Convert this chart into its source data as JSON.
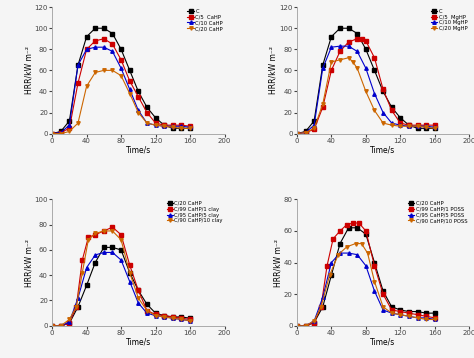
{
  "background": "#f5f5f5",
  "plots": [
    {
      "ylabel": "HRR/kW m⁻²",
      "xlabel": "Time/s",
      "xlim": [
        0,
        200
      ],
      "ylim": [
        0,
        120
      ],
      "yticks": [
        0,
        20,
        40,
        60,
        80,
        100,
        120
      ],
      "xticks": [
        0,
        40,
        80,
        120,
        160,
        200
      ],
      "series": [
        {
          "label": "C",
          "color": "#000000",
          "marker": "s",
          "x": [
            0,
            10,
            20,
            30,
            40,
            50,
            60,
            70,
            80,
            90,
            100,
            110,
            120,
            130,
            140,
            150,
            160
          ],
          "y": [
            0,
            2,
            12,
            65,
            92,
            100,
            100,
            95,
            80,
            60,
            40,
            25,
            15,
            8,
            5,
            5,
            5
          ]
        },
        {
          "label": "C/5  CaHP",
          "color": "#cc0000",
          "marker": "s",
          "x": [
            0,
            10,
            20,
            30,
            40,
            50,
            60,
            70,
            80,
            90,
            100,
            110,
            120,
            130,
            140,
            150,
            160
          ],
          "y": [
            0,
            1,
            5,
            48,
            80,
            88,
            90,
            85,
            70,
            50,
            35,
            20,
            10,
            8,
            8,
            8,
            7
          ]
        },
        {
          "label": "C/10 CaHP",
          "color": "#0000cc",
          "marker": "^",
          "x": [
            0,
            10,
            20,
            30,
            40,
            50,
            60,
            70,
            80,
            90,
            100,
            110,
            120,
            130,
            140,
            150,
            160
          ],
          "y": [
            0,
            1,
            8,
            65,
            80,
            82,
            82,
            78,
            62,
            42,
            22,
            10,
            8,
            7,
            7,
            7,
            6
          ]
        },
        {
          "label": "C/20 CaHP",
          "color": "#cc6600",
          "marker": "v",
          "x": [
            0,
            10,
            20,
            30,
            40,
            50,
            60,
            70,
            80,
            90,
            100,
            110,
            120,
            130,
            140,
            150,
            160
          ],
          "y": [
            0,
            0,
            2,
            10,
            45,
            58,
            60,
            60,
            55,
            38,
            20,
            10,
            8,
            7,
            6,
            5,
            5
          ]
        }
      ]
    },
    {
      "ylabel": "HRR/kW m⁻²",
      "xlabel": "Time/s",
      "xlim": [
        0,
        200
      ],
      "ylim": [
        0,
        120
      ],
      "yticks": [
        0,
        20,
        40,
        60,
        80,
        100,
        120
      ],
      "xticks": [
        0,
        40,
        80,
        120,
        160,
        200
      ],
      "series": [
        {
          "label": "C",
          "color": "#000000",
          "marker": "s",
          "x": [
            0,
            10,
            20,
            30,
            40,
            50,
            60,
            70,
            80,
            90,
            100,
            110,
            120,
            130,
            140,
            150,
            160
          ],
          "y": [
            0,
            2,
            12,
            65,
            92,
            100,
            100,
            95,
            80,
            60,
            40,
            25,
            15,
            8,
            5,
            5,
            5
          ]
        },
        {
          "label": "C/5  MgHP",
          "color": "#cc0000",
          "marker": "s",
          "x": [
            0,
            10,
            20,
            30,
            40,
            50,
            60,
            70,
            75,
            80,
            90,
            100,
            110,
            120,
            130,
            140,
            150,
            160
          ],
          "y": [
            0,
            1,
            4,
            25,
            60,
            78,
            87,
            90,
            90,
            88,
            72,
            42,
            22,
            10,
            8,
            8,
            8,
            8
          ]
        },
        {
          "label": "C/10 MgHP",
          "color": "#0000cc",
          "marker": "^",
          "x": [
            0,
            10,
            20,
            30,
            40,
            50,
            60,
            70,
            80,
            90,
            100,
            110,
            120,
            130,
            140,
            150,
            160
          ],
          "y": [
            0,
            1,
            8,
            62,
            82,
            83,
            83,
            78,
            62,
            38,
            20,
            10,
            8,
            7,
            7,
            7,
            6
          ]
        },
        {
          "label": "C/20 MgHP",
          "color": "#cc6600",
          "marker": "v",
          "x": [
            0,
            10,
            20,
            30,
            40,
            50,
            60,
            65,
            70,
            80,
            90,
            100,
            110,
            120,
            130,
            140,
            150,
            160
          ],
          "y": [
            0,
            1,
            5,
            28,
            68,
            70,
            72,
            68,
            62,
            40,
            22,
            10,
            8,
            7,
            7,
            7,
            6,
            5
          ]
        }
      ]
    },
    {
      "ylabel": "HRR/kW m⁻²",
      "xlabel": "Time/s",
      "xlim": [
        0,
        200
      ],
      "ylim": [
        0,
        100
      ],
      "yticks": [
        0,
        20,
        40,
        60,
        80,
        100
      ],
      "xticks": [
        0,
        40,
        80,
        120,
        160,
        200
      ],
      "series": [
        {
          "label": "C/20 CaHP",
          "color": "#000000",
          "marker": "s",
          "x": [
            0,
            10,
            20,
            30,
            40,
            50,
            60,
            70,
            80,
            90,
            100,
            110,
            120,
            130,
            140,
            150,
            160
          ],
          "y": [
            0,
            0,
            2,
            15,
            32,
            50,
            62,
            62,
            60,
            42,
            28,
            17,
            10,
            8,
            7,
            7,
            6
          ]
        },
        {
          "label": "C/99 CaHP/1 clay",
          "color": "#cc0000",
          "marker": "s",
          "x": [
            0,
            10,
            20,
            28,
            35,
            42,
            50,
            60,
            70,
            80,
            90,
            100,
            110,
            120,
            130,
            140,
            150,
            160
          ],
          "y": [
            0,
            0,
            2,
            15,
            52,
            70,
            72,
            75,
            78,
            72,
            48,
            28,
            12,
            9,
            8,
            7,
            6,
            5
          ]
        },
        {
          "label": "C/95 CaHP/5 clay",
          "color": "#0000cc",
          "marker": "^",
          "x": [
            0,
            10,
            20,
            30,
            40,
            50,
            60,
            70,
            80,
            90,
            100,
            110,
            120,
            130,
            140,
            150,
            160
          ],
          "y": [
            0,
            0,
            3,
            22,
            46,
            56,
            58,
            58,
            52,
            35,
            18,
            10,
            8,
            7,
            6,
            5,
            4
          ]
        },
        {
          "label": "C/90 CaHP/10 clay",
          "color": "#cc6600",
          "marker": "v",
          "x": [
            0,
            10,
            20,
            28,
            35,
            42,
            50,
            60,
            70,
            80,
            90,
            100,
            110,
            120,
            130,
            140,
            150,
            160
          ],
          "y": [
            0,
            0,
            5,
            15,
            42,
            68,
            73,
            75,
            75,
            68,
            42,
            22,
            12,
            8,
            7,
            6,
            5,
            4
          ]
        }
      ]
    },
    {
      "ylabel": "HRR/kW m⁻²",
      "xlabel": "Time/s",
      "xlim": [
        0,
        200
      ],
      "ylim": [
        0,
        80
      ],
      "yticks": [
        0,
        20,
        40,
        60,
        80
      ],
      "xticks": [
        0,
        40,
        80,
        120,
        160,
        200
      ],
      "series": [
        {
          "label": "C/20 CaHP",
          "color": "#000000",
          "marker": "s",
          "x": [
            0,
            10,
            20,
            30,
            40,
            50,
            60,
            70,
            80,
            90,
            100,
            110,
            120,
            130,
            140,
            150,
            160
          ],
          "y": [
            0,
            0,
            2,
            12,
            32,
            52,
            62,
            62,
            58,
            40,
            22,
            12,
            10,
            9,
            9,
            8,
            8
          ]
        },
        {
          "label": "C/99 CaHP/1 POSS",
          "color": "#cc0000",
          "marker": "s",
          "x": [
            0,
            10,
            20,
            28,
            35,
            42,
            50,
            58,
            65,
            72,
            80,
            90,
            100,
            110,
            120,
            130,
            140,
            150,
            160
          ],
          "y": [
            0,
            0,
            2,
            12,
            38,
            55,
            60,
            64,
            65,
            65,
            60,
            38,
            20,
            10,
            9,
            8,
            7,
            6,
            5
          ]
        },
        {
          "label": "C/95 CaHP/5 POSS",
          "color": "#0000cc",
          "marker": "^",
          "x": [
            0,
            10,
            20,
            30,
            40,
            50,
            60,
            70,
            80,
            90,
            100,
            110,
            120,
            130,
            140,
            150,
            160
          ],
          "y": [
            0,
            0,
            3,
            18,
            40,
            46,
            46,
            45,
            38,
            22,
            10,
            8,
            7,
            6,
            5,
            5,
            4
          ]
        },
        {
          "label": "C/90 CaHP/10 POSS",
          "color": "#cc6600",
          "marker": "v",
          "x": [
            0,
            10,
            20,
            28,
            38,
            48,
            58,
            68,
            75,
            82,
            90,
            100,
            110,
            120,
            130,
            140,
            150,
            160
          ],
          "y": [
            0,
            0,
            3,
            12,
            32,
            45,
            50,
            52,
            52,
            46,
            28,
            12,
            8,
            7,
            6,
            5,
            4,
            4
          ]
        }
      ]
    }
  ]
}
